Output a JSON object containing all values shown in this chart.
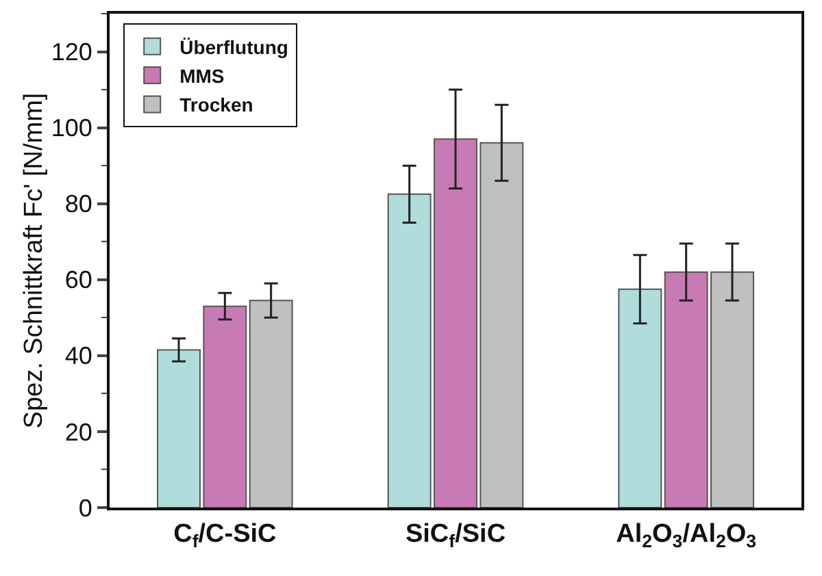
{
  "chart_data": {
    "type": "bar",
    "ylabel": "Spez. Schnittkraft Fc' [N/mm]",
    "categories": [
      "C$_{f}$/C-SiC",
      "SiC$_{f}$/SiC",
      "Al$_{2}$O$_{3}$/Al$_{2}$O$_{3}$"
    ],
    "series": [
      {
        "name": "Überflutung",
        "color": "#b0dcdc",
        "values": [
          41.5,
          82.5,
          57.5
        ],
        "errors": [
          3,
          7.5,
          9
        ]
      },
      {
        "name": "MMS",
        "color": "#c87ab4",
        "values": [
          53,
          97,
          62
        ],
        "errors": [
          3.5,
          13,
          7.5
        ]
      },
      {
        "name": "Trocken",
        "color": "#c0c0c0",
        "values": [
          54.5,
          96,
          62
        ],
        "errors": [
          4.5,
          10,
          7.5
        ]
      }
    ],
    "ylim": [
      0,
      130
    ],
    "yticks": [
      0,
      20,
      40,
      60,
      80,
      100,
      120
    ],
    "grid": false,
    "legend": "top left"
  }
}
